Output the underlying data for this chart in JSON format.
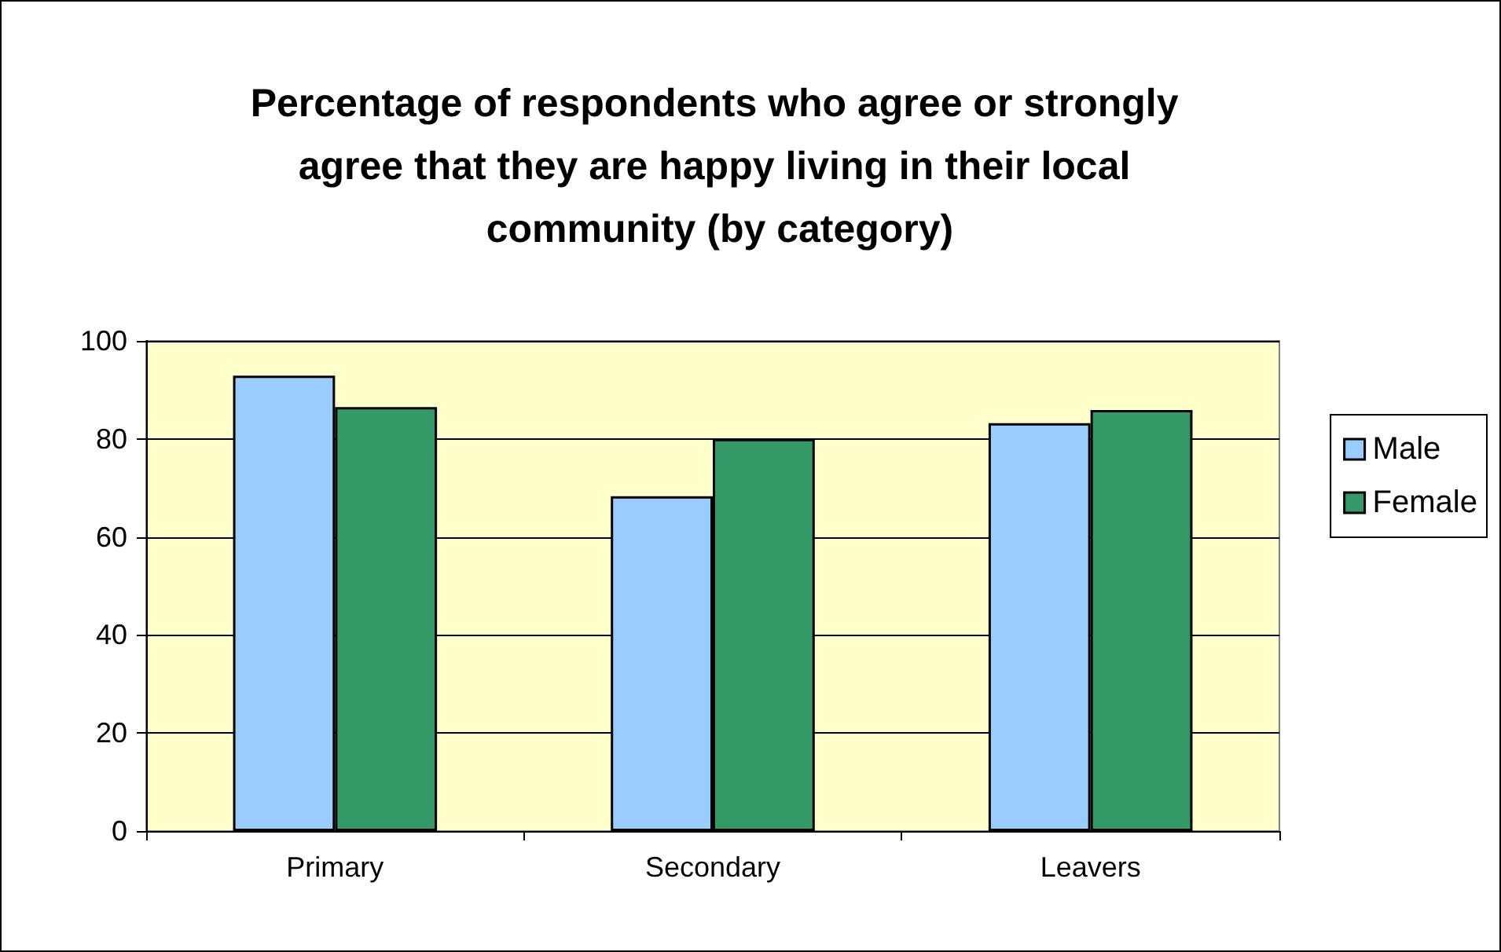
{
  "chart_data": {
    "type": "bar",
    "title": "Percentage of respondents who agree or strongly agree that they are happy living in their local community (by category)",
    "categories": [
      "Primary",
      "Secondary",
      "Leavers"
    ],
    "series": [
      {
        "name": "Male",
        "color": "#99ccff",
        "values": [
          92.9,
          68.3,
          83.2
        ]
      },
      {
        "name": "Female",
        "color": "#339966",
        "values": [
          86.5,
          80,
          85.9
        ]
      }
    ],
    "ylim": [
      0,
      100
    ],
    "yticks": [
      0,
      20,
      40,
      60,
      80,
      100
    ],
    "grid": "y",
    "legend": "right"
  }
}
